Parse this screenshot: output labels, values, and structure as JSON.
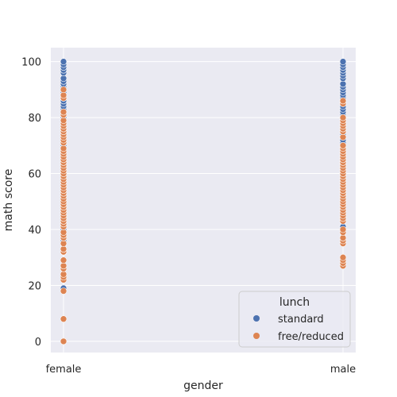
{
  "chart_data": {
    "type": "scatter",
    "xlabel": "gender",
    "ylabel": "math score",
    "categories": [
      "female",
      "male"
    ],
    "ylim": [
      -4,
      105
    ],
    "yticks": [
      0,
      20,
      40,
      60,
      80,
      100
    ],
    "grid": true,
    "legend": {
      "title": "lunch",
      "placement": "bottom-right"
    },
    "series": [
      {
        "name": "standard",
        "color": "#4c72b0",
        "points": [
          {
            "x": "female",
            "values": [
              19,
              32,
              36,
              38,
              40,
              41,
              42,
              44,
              45,
              46,
              47,
              48,
              49,
              50,
              51,
              52,
              53,
              54,
              55,
              56,
              57,
              58,
              59,
              60,
              61,
              62,
              63,
              64,
              65,
              66,
              67,
              68,
              69,
              70,
              71,
              72,
              73,
              74,
              75,
              76,
              77,
              78,
              79,
              80,
              81,
              82,
              83,
              84,
              85,
              86,
              87,
              88,
              89,
              90,
              91,
              92,
              93,
              94,
              96,
              97,
              98,
              99,
              100
            ]
          },
          {
            "x": "male",
            "values": [
              41,
              44,
              47,
              49,
              50,
              51,
              52,
              53,
              54,
              55,
              56,
              57,
              58,
              59,
              60,
              61,
              62,
              63,
              64,
              65,
              66,
              67,
              68,
              69,
              70,
              71,
              72,
              73,
              74,
              75,
              76,
              77,
              78,
              79,
              80,
              81,
              82,
              83,
              84,
              85,
              86,
              87,
              88,
              89,
              90,
              91,
              92,
              94,
              95,
              96,
              97,
              98,
              99,
              100
            ]
          }
        ]
      },
      {
        "name": "free/reduced",
        "color": "#dd8452",
        "points": [
          {
            "x": "female",
            "values": [
              0,
              8,
              18,
              22,
              23,
              24,
              26,
              27,
              29,
              32,
              33,
              35,
              37,
              38,
              39,
              41,
              42,
              43,
              44,
              45,
              46,
              47,
              48,
              49,
              50,
              51,
              52,
              53,
              54,
              55,
              56,
              57,
              58,
              59,
              60,
              61,
              62,
              63,
              64,
              65,
              66,
              67,
              68,
              69,
              71,
              72,
              73,
              74,
              75,
              76,
              77,
              78,
              79,
              81,
              82,
              87,
              88,
              90
            ]
          },
          {
            "x": "male",
            "values": [
              27,
              28,
              29,
              30,
              35,
              36,
              37,
              39,
              40,
              43,
              44,
              45,
              46,
              47,
              48,
              49,
              50,
              51,
              52,
              53,
              54,
              55,
              56,
              57,
              58,
              59,
              60,
              61,
              62,
              63,
              64,
              65,
              66,
              67,
              68,
              69,
              70,
              73,
              75,
              76,
              77,
              78,
              79,
              80,
              85,
              86
            ]
          }
        ]
      }
    ]
  }
}
